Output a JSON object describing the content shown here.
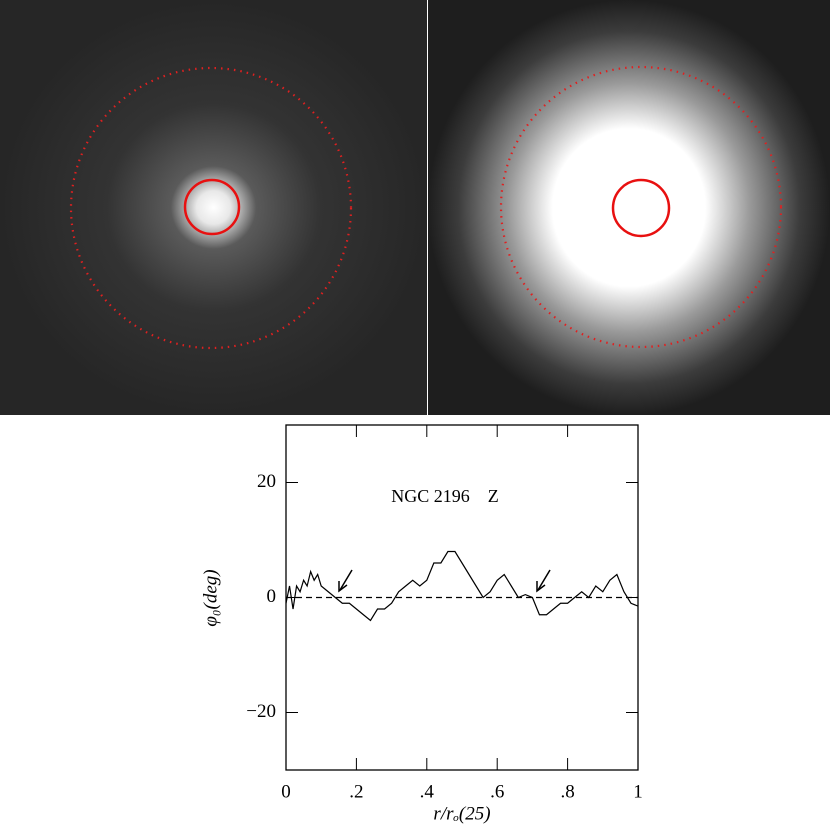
{
  "chart_data": {
    "type": "line",
    "annotation": "NGC 2196    Z",
    "x_label": "r/rₒ(25)",
    "y_label": "φ₀(deg)",
    "x": [
      0,
      0.01,
      0.02,
      0.03,
      0.04,
      0.05,
      0.06,
      0.07,
      0.08,
      0.09,
      0.1,
      0.12,
      0.14,
      0.16,
      0.18,
      0.2,
      0.22,
      0.24,
      0.26,
      0.28,
      0.3,
      0.32,
      0.34,
      0.36,
      0.38,
      0.4,
      0.42,
      0.44,
      0.46,
      0.48,
      0.5,
      0.52,
      0.54,
      0.56,
      0.58,
      0.6,
      0.62,
      0.64,
      0.66,
      0.68,
      0.7,
      0.72,
      0.74,
      0.76,
      0.78,
      0.8,
      0.82,
      0.84,
      0.86,
      0.88,
      0.9,
      0.92,
      0.94,
      0.96,
      0.98,
      1.0
    ],
    "series": [
      {
        "color": "#000000",
        "values": [
          -1,
          2,
          -2,
          2,
          1,
          3,
          2,
          4.5,
          3,
          4,
          2,
          1,
          0,
          -1,
          -1,
          -2,
          -3,
          -4,
          -2,
          -2,
          -1,
          1,
          2,
          3,
          2,
          3,
          6,
          6,
          8,
          8,
          6,
          4,
          2,
          0,
          1,
          3,
          4,
          2,
          0,
          0.5,
          0,
          -3,
          -3,
          -2,
          -1,
          -1,
          0,
          1,
          0,
          2,
          1,
          3,
          4,
          1,
          -1,
          -1.5
        ]
      }
    ],
    "reference_line": 0,
    "xlim": [
      0,
      1
    ],
    "xticks": [
      0,
      {
        "value": 0.2,
        "label": ".2"
      },
      {
        "value": 0.4,
        "label": ".4"
      },
      {
        "value": 0.6,
        "label": ".6"
      },
      {
        "value": 0.8,
        "label": ".8"
      },
      1
    ],
    "ylim": [
      -30,
      30
    ],
    "yticks": [
      {
        "value": -20,
        "label": "−20"
      },
      0,
      20
    ]
  }
}
